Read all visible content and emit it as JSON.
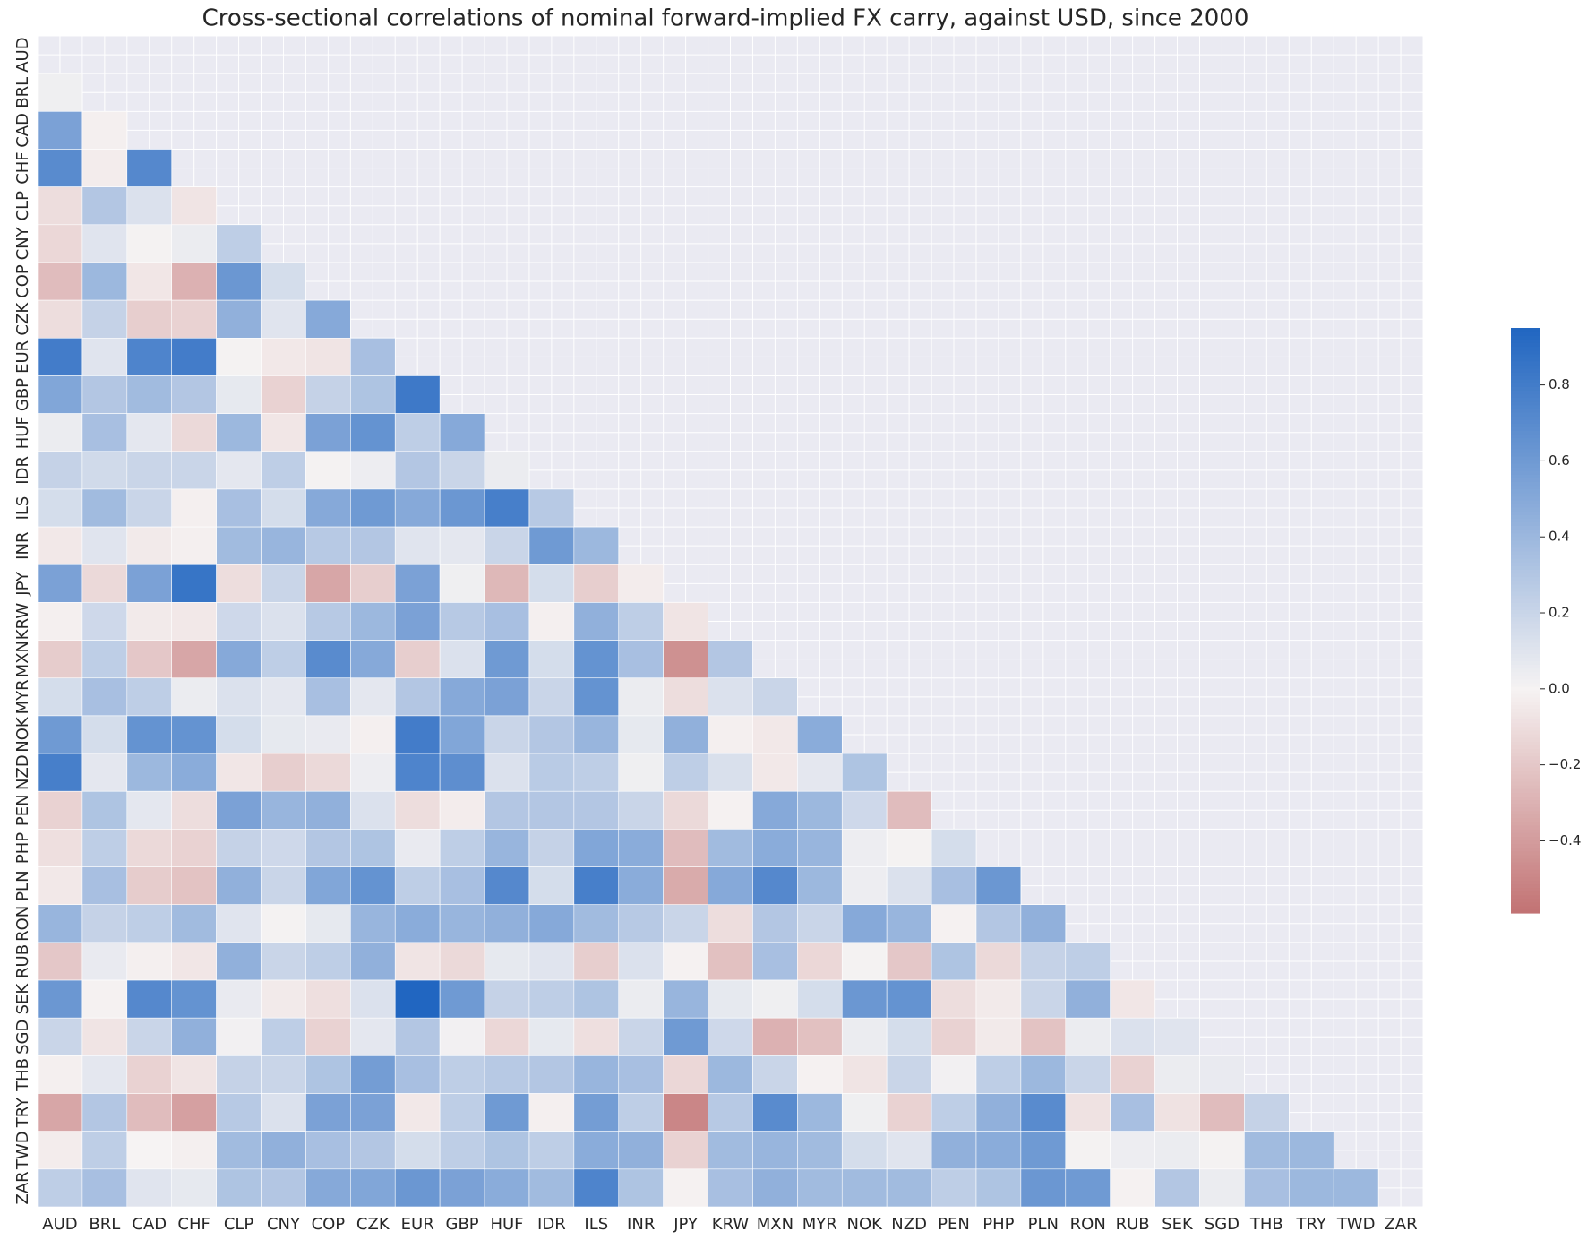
{
  "chart_data": {
    "type": "heatmap",
    "title": "Cross-sectional correlations of nominal forward-implied FX carry, against USD, since 2000",
    "categories": [
      "AUD",
      "BRL",
      "CAD",
      "CHF",
      "CLP",
      "CNY",
      "COP",
      "CZK",
      "EUR",
      "GBP",
      "HUF",
      "IDR",
      "ILS",
      "INR",
      "JPY",
      "KRW",
      "MXN",
      "MYR",
      "NOK",
      "NZD",
      "PEN",
      "PHP",
      "PLN",
      "RON",
      "RUB",
      "SEK",
      "SGD",
      "THB",
      "TRY",
      "TWD",
      "ZAR"
    ],
    "mask": "upper",
    "values": [
      [],
      [
        0.03
      ],
      [
        0.55,
        -0.02
      ],
      [
        0.7,
        -0.03,
        0.72
      ],
      [
        -0.1,
        0.3,
        0.12,
        -0.07
      ],
      [
        -0.13,
        0.1,
        0.01,
        0.05,
        0.25
      ],
      [
        -0.25,
        0.4,
        -0.06,
        -0.3,
        0.62,
        0.15
      ],
      [
        -0.1,
        0.22,
        -0.17,
        -0.15,
        0.45,
        0.1,
        0.5
      ],
      [
        0.8,
        0.1,
        0.75,
        0.8,
        0.01,
        -0.05,
        -0.07,
        0.35
      ],
      [
        0.52,
        0.3,
        0.38,
        0.3,
        0.07,
        -0.15,
        0.22,
        0.32,
        0.82
      ],
      [
        0.05,
        0.35,
        0.08,
        -0.12,
        0.4,
        -0.06,
        0.55,
        0.65,
        0.25,
        0.5
      ],
      [
        0.22,
        0.17,
        0.2,
        0.2,
        0.08,
        0.25,
        0.01,
        0.04,
        0.3,
        0.2,
        0.05
      ],
      [
        0.15,
        0.38,
        0.2,
        -0.02,
        0.35,
        0.15,
        0.5,
        0.6,
        0.5,
        0.62,
        0.78,
        0.28
      ],
      [
        -0.05,
        0.1,
        -0.04,
        -0.02,
        0.38,
        0.42,
        0.28,
        0.3,
        0.1,
        0.08,
        0.2,
        0.6,
        0.4
      ],
      [
        0.55,
        -0.12,
        0.55,
        0.85,
        -0.1,
        0.2,
        -0.35,
        -0.17,
        0.55,
        0.03,
        -0.27,
        0.15,
        -0.17,
        -0.03
      ],
      [
        -0.02,
        0.18,
        -0.04,
        -0.05,
        0.18,
        0.12,
        0.28,
        0.4,
        0.55,
        0.28,
        0.35,
        -0.02,
        0.45,
        0.25,
        -0.07
      ],
      [
        -0.18,
        0.25,
        -0.2,
        -0.35,
        0.5,
        0.25,
        0.7,
        0.5,
        -0.17,
        0.12,
        0.6,
        0.15,
        0.65,
        0.35,
        -0.45,
        0.3
      ],
      [
        0.15,
        0.35,
        0.25,
        0.05,
        0.12,
        0.08,
        0.35,
        0.08,
        0.3,
        0.5,
        0.55,
        0.2,
        0.65,
        0.05,
        -0.1,
        0.12,
        0.2
      ],
      [
        0.6,
        0.15,
        0.65,
        0.65,
        0.15,
        0.07,
        0.06,
        -0.02,
        0.8,
        0.52,
        0.2,
        0.3,
        0.42,
        0.07,
        0.45,
        -0.02,
        -0.05,
        0.48
      ],
      [
        0.78,
        0.08,
        0.4,
        0.48,
        -0.06,
        -0.17,
        -0.12,
        0.04,
        0.75,
        0.68,
        0.12,
        0.27,
        0.25,
        0.03,
        0.25,
        0.13,
        -0.05,
        0.08,
        0.32
      ],
      [
        -0.15,
        0.32,
        0.08,
        -0.1,
        0.55,
        0.42,
        0.45,
        0.12,
        -0.1,
        -0.03,
        0.3,
        0.3,
        0.3,
        0.2,
        -0.12,
        -0.01,
        0.5,
        0.4,
        0.18,
        -0.25
      ],
      [
        -0.09,
        0.25,
        -0.12,
        -0.15,
        0.22,
        0.18,
        0.3,
        0.32,
        0.06,
        0.25,
        0.42,
        0.22,
        0.52,
        0.48,
        -0.25,
        0.38,
        0.48,
        0.42,
        0.04,
        0.01,
        0.15
      ],
      [
        -0.05,
        0.35,
        -0.18,
        -0.22,
        0.45,
        0.2,
        0.52,
        0.65,
        0.25,
        0.35,
        0.72,
        0.15,
        0.78,
        0.48,
        -0.33,
        0.5,
        0.72,
        0.4,
        0.04,
        0.12,
        0.35,
        0.62
      ],
      [
        0.42,
        0.22,
        0.25,
        0.38,
        0.1,
        0.01,
        0.07,
        0.42,
        0.48,
        0.42,
        0.45,
        0.5,
        0.38,
        0.28,
        0.2,
        -0.1,
        0.3,
        0.2,
        0.5,
        0.42,
        -0.01,
        0.3,
        0.45
      ],
      [
        -0.2,
        0.06,
        -0.02,
        -0.06,
        0.45,
        0.2,
        0.25,
        0.45,
        -0.07,
        -0.12,
        0.07,
        0.1,
        -0.17,
        0.12,
        -0.01,
        -0.23,
        0.35,
        -0.13,
        0.01,
        -0.2,
        0.32,
        -0.12,
        0.22,
        0.25
      ],
      [
        0.62,
        -0.01,
        0.72,
        0.65,
        0.06,
        -0.04,
        -0.09,
        0.12,
        0.95,
        0.6,
        0.22,
        0.25,
        0.32,
        0.05,
        0.42,
        0.07,
        0.03,
        0.15,
        0.62,
        0.65,
        -0.1,
        -0.04,
        0.2,
        0.45,
        -0.06
      ],
      [
        0.2,
        -0.07,
        0.2,
        0.45,
        0.02,
        0.25,
        -0.15,
        0.08,
        0.3,
        0.02,
        -0.13,
        0.07,
        -0.09,
        0.2,
        0.6,
        0.18,
        -0.3,
        -0.23,
        0.05,
        0.15,
        -0.15,
        -0.04,
        -0.22,
        0.05,
        0.12,
        0.1
      ],
      [
        -0.02,
        0.08,
        -0.15,
        -0.07,
        0.22,
        0.2,
        0.32,
        0.58,
        0.35,
        0.25,
        0.28,
        0.3,
        0.42,
        0.35,
        -0.13,
        0.4,
        0.2,
        -0.01,
        -0.07,
        0.2,
        0.02,
        0.25,
        0.4,
        0.2,
        -0.15,
        0.05,
        0.06
      ],
      [
        -0.35,
        0.3,
        -0.25,
        -0.38,
        0.28,
        0.12,
        0.55,
        0.55,
        -0.05,
        0.25,
        0.6,
        -0.02,
        0.58,
        0.25,
        -0.5,
        0.28,
        0.7,
        0.4,
        0.03,
        -0.15,
        0.25,
        0.45,
        0.7,
        -0.08,
        0.35,
        -0.08,
        -0.25,
        0.22
      ],
      [
        -0.03,
        0.25,
        0.0,
        -0.02,
        0.38,
        0.45,
        0.35,
        0.3,
        0.15,
        0.25,
        0.32,
        0.25,
        0.48,
        0.45,
        -0.15,
        0.38,
        0.42,
        0.38,
        0.15,
        0.1,
        0.45,
        0.48,
        0.6,
        0.01,
        0.04,
        0.05,
        0.01,
        0.38,
        0.4
      ],
      [
        0.25,
        0.35,
        0.1,
        0.07,
        0.32,
        0.3,
        0.5,
        0.52,
        0.62,
        0.55,
        0.48,
        0.38,
        0.75,
        0.32,
        -0.01,
        0.35,
        0.45,
        0.38,
        0.38,
        0.38,
        0.25,
        0.32,
        0.62,
        0.6,
        -0.01,
        0.3,
        0.05,
        0.35,
        0.4,
        0.4
      ]
    ],
    "clim": [
      -0.59,
      0.95
    ],
    "colorbar_ticks": [
      {
        "value": -0.4,
        "label": "−0.4"
      },
      {
        "value": -0.2,
        "label": "−0.2"
      },
      {
        "value": 0,
        "label": "0.0"
      },
      0.2,
      0.4,
      0.6,
      0.8
    ],
    "colors": [
      "#c27273",
      "#f6f3f3",
      "#2166c1"
    ],
    "background": "#eaeaf2"
  }
}
